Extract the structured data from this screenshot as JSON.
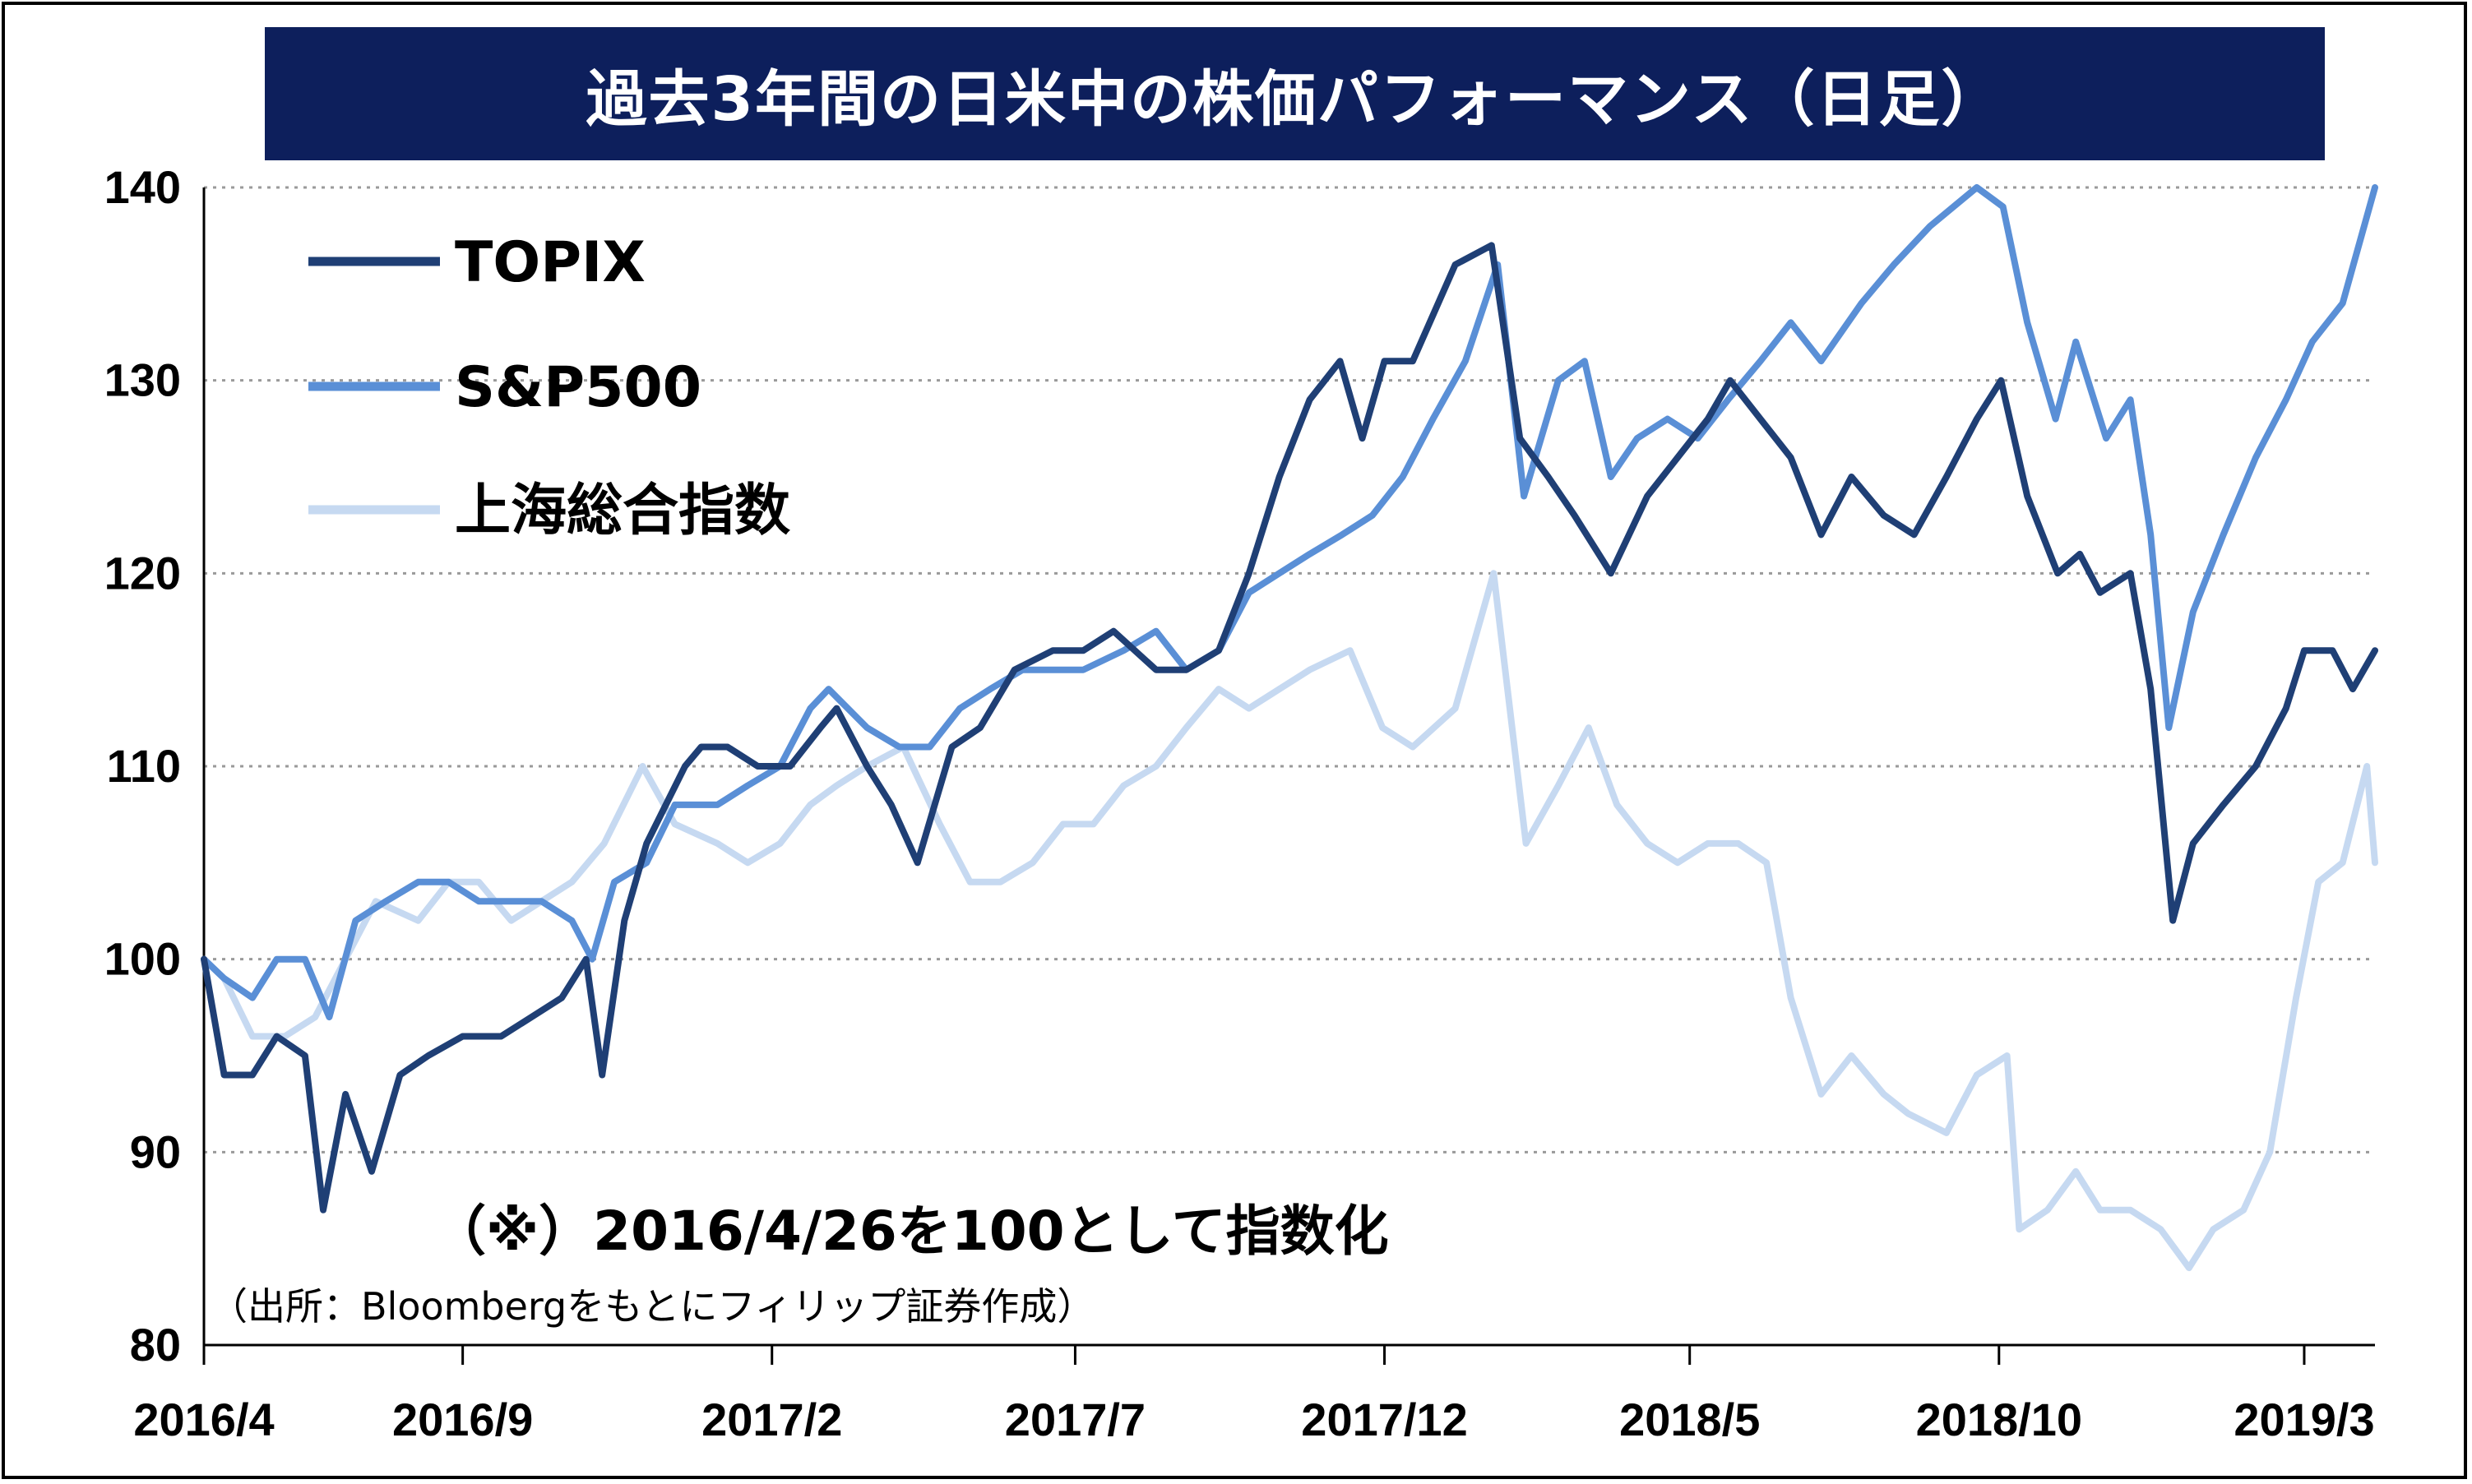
{
  "chart_data": {
    "type": "line",
    "title": "過去3年間の日米中の株価パフォーマンス（日足）",
    "xlabel": "",
    "ylabel": "",
    "ylim": [
      80,
      140
    ],
    "yticks": [
      80,
      90,
      100,
      110,
      120,
      130,
      140
    ],
    "xlim": [
      "2016-04-26",
      "2019-04-05"
    ],
    "xticks": [
      {
        "label": "2016/4",
        "date": "2016-04-01"
      },
      {
        "label": "2016/9",
        "date": "2016-09-01"
      },
      {
        "label": "2017/2",
        "date": "2017-02-01"
      },
      {
        "label": "2017/7",
        "date": "2017-07-01"
      },
      {
        "label": "2017/12",
        "date": "2017-12-01"
      },
      {
        "label": "2018/5",
        "date": "2018-05-01"
      },
      {
        "label": "2018/10",
        "date": "2018-10-01"
      },
      {
        "label": "2019/3",
        "date": "2019-03-01"
      }
    ],
    "grid": "horizontal-dotted",
    "legend_position": "top-left",
    "annotation": "（※）2016/4/26を100として指数化",
    "source_note": "（出所：Bloombergをもとにフィリップ証券作成）",
    "series": [
      {
        "name": "TOPIX",
        "color": "#1f3f75",
        "points": [
          [
            "2016-04-26",
            100
          ],
          [
            "2016-05-06",
            94
          ],
          [
            "2016-05-20",
            94
          ],
          [
            "2016-06-01",
            96
          ],
          [
            "2016-06-15",
            95
          ],
          [
            "2016-06-24",
            87
          ],
          [
            "2016-07-05",
            93
          ],
          [
            "2016-07-18",
            89
          ],
          [
            "2016-08-01",
            94
          ],
          [
            "2016-08-15",
            95
          ],
          [
            "2016-09-01",
            96
          ],
          [
            "2016-09-20",
            96
          ],
          [
            "2016-10-05",
            97
          ],
          [
            "2016-10-20",
            98
          ],
          [
            "2016-11-01",
            100
          ],
          [
            "2016-11-09",
            94
          ],
          [
            "2016-11-20",
            102
          ],
          [
            "2016-12-01",
            106
          ],
          [
            "2016-12-20",
            110
          ],
          [
            "2016-12-28",
            111
          ],
          [
            "2017-01-10",
            111
          ],
          [
            "2017-01-25",
            110
          ],
          [
            "2017-02-10",
            110
          ],
          [
            "2017-02-25",
            112
          ],
          [
            "2017-03-05",
            113
          ],
          [
            "2017-03-20",
            110
          ],
          [
            "2017-04-01",
            108
          ],
          [
            "2017-04-14",
            105
          ],
          [
            "2017-05-01",
            111
          ],
          [
            "2017-05-15",
            112
          ],
          [
            "2017-06-01",
            115
          ],
          [
            "2017-06-20",
            116
          ],
          [
            "2017-07-05",
            116
          ],
          [
            "2017-07-20",
            117
          ],
          [
            "2017-08-10",
            115
          ],
          [
            "2017-08-25",
            115
          ],
          [
            "2017-09-10",
            116
          ],
          [
            "2017-09-25",
            120
          ],
          [
            "2017-10-10",
            125
          ],
          [
            "2017-10-25",
            129
          ],
          [
            "2017-11-09",
            131
          ],
          [
            "2017-11-20",
            127
          ],
          [
            "2017-12-01",
            131
          ],
          [
            "2017-12-15",
            131
          ],
          [
            "2018-01-05",
            136
          ],
          [
            "2018-01-23",
            137
          ],
          [
            "2018-02-06",
            127
          ],
          [
            "2018-02-20",
            125
          ],
          [
            "2018-03-05",
            123
          ],
          [
            "2018-03-23",
            120
          ],
          [
            "2018-04-10",
            124
          ],
          [
            "2018-04-25",
            126
          ],
          [
            "2018-05-10",
            128
          ],
          [
            "2018-05-21",
            130
          ],
          [
            "2018-06-05",
            128
          ],
          [
            "2018-06-20",
            126
          ],
          [
            "2018-07-05",
            122
          ],
          [
            "2018-07-20",
            125
          ],
          [
            "2018-08-05",
            123
          ],
          [
            "2018-08-20",
            122
          ],
          [
            "2018-09-05",
            125
          ],
          [
            "2018-09-20",
            128
          ],
          [
            "2018-10-02",
            130
          ],
          [
            "2018-10-15",
            124
          ],
          [
            "2018-10-30",
            120
          ],
          [
            "2018-11-10",
            121
          ],
          [
            "2018-11-20",
            119
          ],
          [
            "2018-12-05",
            120
          ],
          [
            "2018-12-15",
            114
          ],
          [
            "2018-12-26",
            102
          ],
          [
            "2019-01-05",
            106
          ],
          [
            "2019-01-20",
            108
          ],
          [
            "2019-02-05",
            110
          ],
          [
            "2019-02-20",
            113
          ],
          [
            "2019-03-01",
            116
          ],
          [
            "2019-03-15",
            116
          ],
          [
            "2019-03-25",
            114
          ],
          [
            "2019-04-05",
            116
          ]
        ]
      },
      {
        "name": "S&P500",
        "color": "#5a8fd6",
        "points": [
          [
            "2016-04-26",
            100
          ],
          [
            "2016-05-06",
            99
          ],
          [
            "2016-05-20",
            98
          ],
          [
            "2016-06-01",
            100
          ],
          [
            "2016-06-15",
            100
          ],
          [
            "2016-06-27",
            97
          ],
          [
            "2016-07-10",
            102
          ],
          [
            "2016-07-25",
            103
          ],
          [
            "2016-08-10",
            104
          ],
          [
            "2016-08-25",
            104
          ],
          [
            "2016-09-09",
            103
          ],
          [
            "2016-09-25",
            103
          ],
          [
            "2016-10-10",
            103
          ],
          [
            "2016-10-25",
            102
          ],
          [
            "2016-11-04",
            100
          ],
          [
            "2016-11-15",
            104
          ],
          [
            "2016-12-01",
            105
          ],
          [
            "2016-12-15",
            108
          ],
          [
            "2017-01-05",
            108
          ],
          [
            "2017-01-20",
            109
          ],
          [
            "2017-02-05",
            110
          ],
          [
            "2017-02-20",
            113
          ],
          [
            "2017-03-01",
            114
          ],
          [
            "2017-03-20",
            112
          ],
          [
            "2017-04-05",
            111
          ],
          [
            "2017-04-20",
            111
          ],
          [
            "2017-05-05",
            113
          ],
          [
            "2017-05-20",
            114
          ],
          [
            "2017-06-05",
            115
          ],
          [
            "2017-06-20",
            115
          ],
          [
            "2017-07-05",
            115
          ],
          [
            "2017-07-25",
            116
          ],
          [
            "2017-08-10",
            117
          ],
          [
            "2017-08-25",
            115
          ],
          [
            "2017-09-10",
            116
          ],
          [
            "2017-09-25",
            119
          ],
          [
            "2017-10-10",
            120
          ],
          [
            "2017-10-25",
            121
          ],
          [
            "2017-11-10",
            122
          ],
          [
            "2017-11-25",
            123
          ],
          [
            "2017-12-10",
            125
          ],
          [
            "2017-12-25",
            128
          ],
          [
            "2018-01-10",
            131
          ],
          [
            "2018-01-26",
            136
          ],
          [
            "2018-02-08",
            124
          ],
          [
            "2018-02-25",
            130
          ],
          [
            "2018-03-10",
            131
          ],
          [
            "2018-03-23",
            125
          ],
          [
            "2018-04-05",
            127
          ],
          [
            "2018-04-20",
            128
          ],
          [
            "2018-05-05",
            127
          ],
          [
            "2018-05-20",
            129
          ],
          [
            "2018-06-05",
            131
          ],
          [
            "2018-06-20",
            133
          ],
          [
            "2018-07-05",
            131
          ],
          [
            "2018-07-25",
            134
          ],
          [
            "2018-08-10",
            136
          ],
          [
            "2018-08-28",
            138
          ],
          [
            "2018-09-20",
            140
          ],
          [
            "2018-10-03",
            139
          ],
          [
            "2018-10-15",
            133
          ],
          [
            "2018-10-29",
            128
          ],
          [
            "2018-11-08",
            132
          ],
          [
            "2018-11-23",
            127
          ],
          [
            "2018-12-05",
            129
          ],
          [
            "2018-12-15",
            122
          ],
          [
            "2018-12-24",
            112
          ],
          [
            "2019-01-05",
            118
          ],
          [
            "2019-01-20",
            122
          ],
          [
            "2019-02-05",
            126
          ],
          [
            "2019-02-20",
            129
          ],
          [
            "2019-03-05",
            132
          ],
          [
            "2019-03-20",
            134
          ],
          [
            "2019-04-05",
            140
          ]
        ]
      },
      {
        "name": "上海総合指数",
        "color": "#c6d9f1",
        "points": [
          [
            "2016-04-26",
            100
          ],
          [
            "2016-05-06",
            99
          ],
          [
            "2016-05-20",
            96
          ],
          [
            "2016-06-05",
            96
          ],
          [
            "2016-06-20",
            97
          ],
          [
            "2016-07-05",
            100
          ],
          [
            "2016-07-20",
            103
          ],
          [
            "2016-08-10",
            102
          ],
          [
            "2016-08-25",
            104
          ],
          [
            "2016-09-09",
            104
          ],
          [
            "2016-09-25",
            102
          ],
          [
            "2016-10-10",
            103
          ],
          [
            "2016-10-25",
            104
          ],
          [
            "2016-11-10",
            106
          ],
          [
            "2016-11-29",
            110
          ],
          [
            "2016-12-15",
            107
          ],
          [
            "2017-01-05",
            106
          ],
          [
            "2017-01-20",
            105
          ],
          [
            "2017-02-05",
            106
          ],
          [
            "2017-02-20",
            108
          ],
          [
            "2017-03-05",
            109
          ],
          [
            "2017-03-20",
            110
          ],
          [
            "2017-04-07",
            111
          ],
          [
            "2017-04-25",
            107
          ],
          [
            "2017-05-10",
            104
          ],
          [
            "2017-05-25",
            104
          ],
          [
            "2017-06-10",
            105
          ],
          [
            "2017-06-25",
            107
          ],
          [
            "2017-07-10",
            107
          ],
          [
            "2017-07-25",
            109
          ],
          [
            "2017-08-10",
            110
          ],
          [
            "2017-08-25",
            112
          ],
          [
            "2017-09-10",
            114
          ],
          [
            "2017-09-25",
            113
          ],
          [
            "2017-10-10",
            114
          ],
          [
            "2017-10-25",
            115
          ],
          [
            "2017-11-14",
            116
          ],
          [
            "2017-11-30",
            112
          ],
          [
            "2017-12-15",
            111
          ],
          [
            "2018-01-05",
            113
          ],
          [
            "2018-01-24",
            120
          ],
          [
            "2018-02-09",
            106
          ],
          [
            "2018-02-25",
            109
          ],
          [
            "2018-03-12",
            112
          ],
          [
            "2018-03-26",
            108
          ],
          [
            "2018-04-10",
            106
          ],
          [
            "2018-04-25",
            105
          ],
          [
            "2018-05-10",
            106
          ],
          [
            "2018-05-25",
            106
          ],
          [
            "2018-06-08",
            105
          ],
          [
            "2018-06-20",
            98
          ],
          [
            "2018-07-05",
            93
          ],
          [
            "2018-07-20",
            95
          ],
          [
            "2018-08-05",
            93
          ],
          [
            "2018-08-17",
            92
          ],
          [
            "2018-09-05",
            91
          ],
          [
            "2018-09-20",
            94
          ],
          [
            "2018-10-05",
            95
          ],
          [
            "2018-10-11",
            86
          ],
          [
            "2018-10-25",
            87
          ],
          [
            "2018-11-08",
            89
          ],
          [
            "2018-11-20",
            87
          ],
          [
            "2018-12-05",
            87
          ],
          [
            "2018-12-20",
            86
          ],
          [
            "2019-01-03",
            84
          ],
          [
            "2019-01-15",
            86
          ],
          [
            "2019-01-30",
            87
          ],
          [
            "2019-02-12",
            90
          ],
          [
            "2019-02-25",
            98
          ],
          [
            "2019-03-08",
            104
          ],
          [
            "2019-03-20",
            105
          ],
          [
            "2019-04-01",
            110
          ],
          [
            "2019-04-05",
            105
          ]
        ]
      }
    ]
  }
}
